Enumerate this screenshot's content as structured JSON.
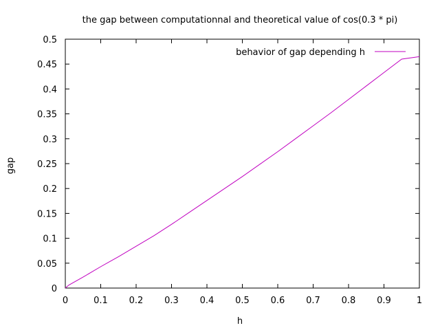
{
  "chart_data": {
    "type": "line",
    "title": "the gap between computationnal and theoretical value of cos(0.3 * pi)",
    "xlabel": "h",
    "ylabel": "gap",
    "xlim": [
      0,
      1
    ],
    "ylim": [
      0,
      0.5
    ],
    "xticks": [
      0,
      0.1,
      0.2,
      0.3,
      0.4,
      0.5,
      0.6,
      0.7,
      0.8,
      0.9,
      1
    ],
    "yticks": [
      0,
      0.05,
      0.1,
      0.15,
      0.2,
      0.25,
      0.3,
      0.35,
      0.4,
      0.45,
      0.5
    ],
    "grid": false,
    "legend_position": "top-right",
    "series": [
      {
        "name": "behavior of gap depending h",
        "color": "#c000c0",
        "x": [
          0,
          0.01,
          0.05,
          0.1,
          0.15,
          0.2,
          0.25,
          0.3,
          0.35,
          0.4,
          0.45,
          0.5,
          0.55,
          0.6,
          0.65,
          0.7,
          0.75,
          0.8,
          0.85,
          0.9,
          0.95,
          1
        ],
        "y": [
          0,
          0.006,
          0.022,
          0.043,
          0.063,
          0.084,
          0.105,
          0.128,
          0.152,
          0.176,
          0.2,
          0.224,
          0.249,
          0.274,
          0.3,
          0.326,
          0.352,
          0.379,
          0.406,
          0.433,
          0.46,
          0.465
        ]
      }
    ]
  }
}
